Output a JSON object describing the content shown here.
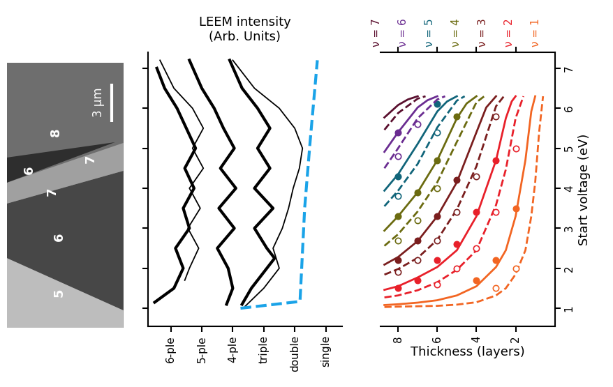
{
  "image": {
    "labels": [
      "5",
      "6",
      "6",
      "7",
      "7",
      "8"
    ],
    "scale_bar": "3 µm"
  },
  "chart_data": [
    {
      "type": "line",
      "title": "LEEM intensity\n(Arb. Units)",
      "xlim": [
        -0.74,
        5.52
      ],
      "xticks": [
        {
          "value": 0,
          "label": "6-ple"
        },
        {
          "value": 1,
          "label": "5-ple"
        },
        {
          "value": 2,
          "label": "4-ple"
        },
        {
          "value": 3,
          "label": "triple"
        },
        {
          "value": 4,
          "label": "double"
        },
        {
          "value": 5,
          "label": "single"
        }
      ],
      "ylim": [
        0.55,
        7.4
      ],
      "yticks": [
        1,
        2,
        3,
        4,
        5,
        6,
        7
      ],
      "tick_labels": "x",
      "series": [
        {
          "color": "#000000",
          "line_style": "solid",
          "y": [
            1.15,
            1.5,
            2,
            2.5,
            3,
            3.5,
            4,
            4.5,
            5,
            5.5,
            6,
            6.5,
            7.0
          ],
          "x": [
            -0.52,
            0.1,
            0.4,
            0.15,
            0.6,
            0.4,
            0.75,
            0.45,
            0.8,
            0.5,
            0.2,
            -0.2,
            -0.45
          ]
        },
        {
          "color": "#000000",
          "line_style": "solid",
          "y": [
            1.7,
            2,
            2.5,
            3,
            3.5,
            4,
            4.5,
            5,
            5.5,
            6,
            6.5,
            7.2
          ],
          "x": [
            0.45,
            0.6,
            0.9,
            0.55,
            0.95,
            0.6,
            1.05,
            0.7,
            1.05,
            0.7,
            0.1,
            -0.35
          ]
        },
        {
          "color": "#000000",
          "line_style": "solid",
          "y": [
            1.1,
            1.5,
            2,
            2.5,
            3,
            3.5,
            4,
            4.5,
            5,
            5.5,
            6,
            6.5,
            7.2
          ],
          "x": [
            1.8,
            2.0,
            1.85,
            1.5,
            2.05,
            1.55,
            2.1,
            1.6,
            2.05,
            1.7,
            1.4,
            1.0,
            0.6
          ]
        },
        {
          "color": "#000000",
          "line_style": "solid",
          "y": [
            1.1,
            1.5,
            2,
            2.25,
            2.5,
            3,
            3.5,
            4,
            4.5,
            5,
            5.5,
            6,
            6.5,
            7.2
          ],
          "x": [
            2.3,
            2.6,
            3.1,
            3.35,
            3.1,
            2.7,
            3.3,
            2.7,
            3.2,
            2.8,
            3.2,
            2.8,
            2.3,
            1.9
          ]
        },
        {
          "color": "#000000",
          "line_style": "solid",
          "y": [
            1.05,
            1.5,
            2,
            2.5,
            3,
            3.5,
            4,
            4.5,
            5,
            5.5,
            6,
            6.5,
            7.2
          ],
          "x": [
            2.4,
            3.0,
            3.5,
            3.3,
            3.6,
            3.8,
            3.95,
            4.15,
            4.25,
            4.0,
            3.5,
            2.7,
            2.0
          ]
        },
        {
          "color": "#1aa3e8",
          "line_style": "dashed",
          "y": [
            1.0,
            1.17,
            3.5,
            5.2,
            7.2
          ],
          "x": [
            2.25,
            4.17,
            4.32,
            4.5,
            4.73
          ]
        }
      ]
    },
    {
      "type": "line",
      "xlabel": "Thickness (layers)",
      "ylabel": "Start voltage (eV)",
      "xlim": [
        8.9,
        0
      ],
      "xticks": [
        2,
        4,
        6,
        8
      ],
      "ylim": [
        0.55,
        7.4
      ],
      "yticks": [
        1,
        2,
        3,
        4,
        5,
        6,
        7
      ],
      "series": [
        {
          "name": "ν = 1",
          "color": "#f26522",
          "line_style": "solid",
          "marker": "filled_circle",
          "x": [
            8.7,
            8,
            7,
            6,
            5,
            4,
            3,
            2.5,
            2,
            1.5,
            1.2,
            1.0
          ],
          "values": [
            1.08,
            1.1,
            1.14,
            1.2,
            1.32,
            1.55,
            2.03,
            2.45,
            3.3,
            4.7,
            5.92,
            6.3
          ],
          "points": {
            "x": [
              2,
              3,
              4
            ],
            "y": [
              3.5,
              2.2,
              1.7
            ]
          }
        },
        {
          "color": "#f26522",
          "line_style": "dashed",
          "marker": "open_circle",
          "x": [
            8.7,
            8,
            7,
            6,
            5,
            4,
            3,
            2.5,
            2,
            1.5,
            1.2,
            1.0,
            0.8,
            0.6
          ],
          "values": [
            1.03,
            1.04,
            1.05,
            1.06,
            1.09,
            1.15,
            1.32,
            1.5,
            1.85,
            2.45,
            3.3,
            4.15,
            5.4,
            6.3
          ],
          "points": {
            "x": [
              2,
              3
            ],
            "y": [
              2.0,
              1.5
            ]
          }
        },
        {
          "name": "ν = 2",
          "color": "#e8202a",
          "line_style": "solid",
          "marker": "filled_circle",
          "x": [
            8.7,
            8,
            7,
            6,
            5,
            4,
            3,
            2.5,
            2.2,
            2
          ],
          "values": [
            1.46,
            1.55,
            1.77,
            2.03,
            2.45,
            3.3,
            4.7,
            5.75,
            6.17,
            6.3
          ],
          "points": {
            "x": [
              8,
              7,
              6,
              5,
              4,
              3
            ],
            "y": [
              1.5,
              1.7,
              2.2,
              2.6,
              3.4,
              4.7
            ]
          }
        },
        {
          "color": "#e8202a",
          "line_style": "dashed",
          "marker": "open_circle",
          "x": [
            8.7,
            8,
            7,
            6,
            5,
            4,
            3,
            2.5,
            2,
            1.6
          ],
          "values": [
            1.27,
            1.32,
            1.45,
            1.65,
            1.96,
            2.45,
            3.58,
            4.47,
            5.75,
            6.3
          ],
          "points": {
            "x": [
              6,
              5,
              4,
              3,
              2
            ],
            "y": [
              1.6,
              2.0,
              2.5,
              3.4,
              5.0
            ]
          }
        },
        {
          "name": "ν = 3",
          "color": "#7a1e1e",
          "line_style": "solid",
          "marker": "filled_circle",
          "x": [
            8.7,
            8,
            7,
            6,
            5,
            4,
            3.5,
            3
          ],
          "values": [
            2.09,
            2.28,
            2.68,
            3.3,
            4.15,
            5.4,
            6.02,
            6.3
          ],
          "points": {
            "x": [
              8,
              7,
              6,
              5
            ],
            "y": [
              2.2,
              2.7,
              3.3,
              4.2
            ]
          }
        },
        {
          "color": "#7a1e1e",
          "line_style": "dashed",
          "marker": "open_circle",
          "x": [
            8.7,
            8,
            7,
            6,
            5,
            4,
            3,
            2.6
          ],
          "values": [
            1.84,
            1.98,
            2.26,
            2.71,
            3.47,
            4.55,
            6.05,
            6.3
          ],
          "points": {
            "x": [
              8,
              7,
              6,
              5,
              4,
              3
            ],
            "y": [
              1.9,
              2.2,
              2.7,
              3.4,
              4.3,
              5.8
            ]
          }
        },
        {
          "name": "ν = 4",
          "color": "#6b6b10",
          "line_style": "solid",
          "marker": "filled_circle",
          "x": [
            8.7,
            8,
            7,
            6,
            5,
            4.5,
            4
          ],
          "values": [
            2.94,
            3.3,
            3.9,
            4.7,
            5.75,
            6.12,
            6.3
          ],
          "points": {
            "x": [
              8,
              7,
              6,
              5
            ],
            "y": [
              3.3,
              3.9,
              4.7,
              5.8
            ]
          }
        },
        {
          "color": "#6b6b10",
          "line_style": "dashed",
          "marker": "open_circle",
          "x": [
            8.7,
            8,
            7,
            6,
            5,
            4,
            3.6
          ],
          "values": [
            2.56,
            2.85,
            3.42,
            4.15,
            5.16,
            6.15,
            6.3
          ],
          "points": {
            "x": [
              8,
              7,
              6
            ],
            "y": [
              2.7,
              3.2,
              4.0
            ]
          }
        },
        {
          "name": "ν = 5",
          "color": "#11657a",
          "line_style": "solid",
          "marker": "filled_circle",
          "x": [
            8.7,
            8,
            7,
            6,
            5.5,
            5
          ],
          "values": [
            3.94,
            4.35,
            5.11,
            5.92,
            6.17,
            6.3
          ],
          "points": {
            "x": [
              8,
              6
            ],
            "y": [
              4.3,
              6.1
            ]
          }
        },
        {
          "color": "#11657a",
          "line_style": "dashed",
          "marker": "open_circle",
          "x": [
            8.7,
            8,
            7,
            6,
            5,
            4.6
          ],
          "values": [
            3.55,
            3.94,
            4.61,
            5.52,
            6.19,
            6.3
          ],
          "points": {
            "x": [
              8,
              6
            ],
            "y": [
              3.8,
              5.4
            ]
          }
        },
        {
          "name": "ν = 6",
          "color": "#6a2c91",
          "line_style": "solid",
          "marker": "filled_circle",
          "x": [
            8.7,
            8,
            7,
            6.5,
            6
          ],
          "values": [
            4.91,
            5.4,
            6.02,
            6.2,
            6.3
          ],
          "points": {
            "x": [
              8
            ],
            "y": [
              5.4
            ]
          }
        },
        {
          "color": "#6a2c91",
          "line_style": "dashed",
          "marker": "open_circle",
          "x": [
            8.7,
            8,
            7,
            6,
            5.6
          ],
          "values": [
            4.5,
            5.0,
            5.75,
            6.22,
            6.3
          ],
          "points": {
            "x": [
              8,
              7
            ],
            "y": [
              4.8,
              5.6
            ]
          }
        },
        {
          "name": "ν = 7",
          "color": "#5a0f2e",
          "line_style": "solid",
          "x": [
            8.7,
            8,
            7.5,
            7
          ],
          "values": [
            5.77,
            6.08,
            6.22,
            6.3
          ]
        },
        {
          "color": "#5a0f2e",
          "line_style": "dashed",
          "x": [
            8.7,
            8,
            7,
            6.6
          ],
          "values": [
            5.46,
            5.88,
            6.24,
            6.3
          ]
        }
      ]
    }
  ]
}
